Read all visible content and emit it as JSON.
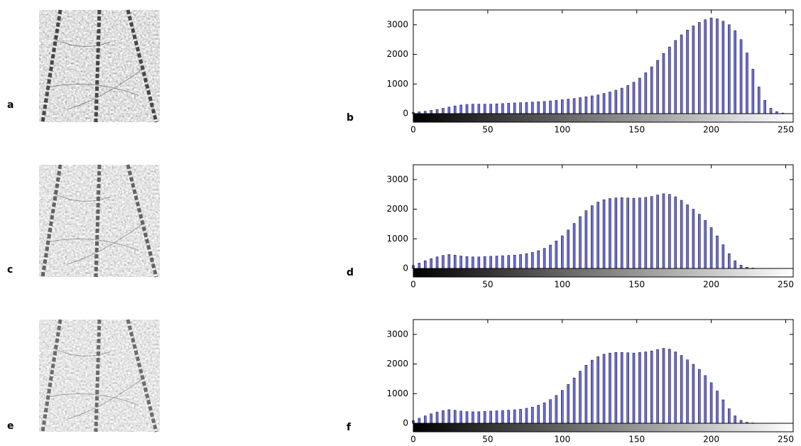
{
  "image_labels": [
    "a",
    "c",
    "e"
  ],
  "chart_data": [
    {
      "type": "bar",
      "label": "b",
      "color": "#6f6fe0",
      "xlim": [
        0,
        255
      ],
      "ylim": [
        0,
        3500
      ],
      "xticks": [
        0,
        50,
        100,
        150,
        200,
        250
      ],
      "yticks": [
        0,
        1000,
        2000,
        3000
      ],
      "grid": false,
      "x": [
        0,
        4,
        8,
        12,
        16,
        20,
        24,
        28,
        32,
        36,
        40,
        44,
        48,
        52,
        56,
        60,
        64,
        68,
        72,
        76,
        80,
        84,
        88,
        92,
        96,
        100,
        104,
        108,
        112,
        116,
        120,
        124,
        128,
        132,
        136,
        140,
        144,
        148,
        152,
        156,
        160,
        164,
        168,
        172,
        176,
        180,
        184,
        188,
        192,
        196,
        200,
        204,
        208,
        212,
        216,
        220,
        224,
        228,
        232,
        236,
        240,
        244,
        248,
        252
      ],
      "values": [
        40,
        60,
        80,
        110,
        140,
        180,
        220,
        260,
        290,
        310,
        320,
        320,
        320,
        320,
        330,
        340,
        350,
        360,
        370,
        380,
        390,
        400,
        410,
        430,
        450,
        470,
        490,
        510,
        540,
        570,
        600,
        630,
        680,
        730,
        790,
        860,
        950,
        1060,
        1200,
        1380,
        1580,
        1800,
        2030,
        2250,
        2470,
        2660,
        2820,
        2960,
        3080,
        3170,
        3230,
        3200,
        3120,
        3000,
        2800,
        2500,
        2050,
        1500,
        900,
        450,
        180,
        70,
        20,
        5
      ]
    },
    {
      "type": "bar",
      "label": "d",
      "color": "#6f6fe0",
      "xlim": [
        0,
        255
      ],
      "ylim": [
        0,
        3500
      ],
      "xticks": [
        0,
        50,
        100,
        150,
        200,
        250
      ],
      "yticks": [
        0,
        1000,
        2000,
        3000
      ],
      "grid": false,
      "x": [
        0,
        4,
        8,
        12,
        16,
        20,
        24,
        28,
        32,
        36,
        40,
        44,
        48,
        52,
        56,
        60,
        64,
        68,
        72,
        76,
        80,
        84,
        88,
        92,
        96,
        100,
        104,
        108,
        112,
        116,
        120,
        124,
        128,
        132,
        136,
        140,
        144,
        148,
        152,
        156,
        160,
        164,
        168,
        172,
        176,
        180,
        184,
        188,
        192,
        196,
        200,
        204,
        208,
        212,
        216,
        220,
        224,
        228,
        232,
        236,
        240,
        244,
        248,
        252
      ],
      "values": [
        100,
        180,
        260,
        330,
        390,
        440,
        470,
        450,
        420,
        400,
        390,
        390,
        400,
        410,
        420,
        430,
        440,
        450,
        470,
        500,
        540,
        600,
        680,
        790,
        930,
        1100,
        1300,
        1520,
        1750,
        1950,
        2120,
        2240,
        2320,
        2360,
        2380,
        2390,
        2380,
        2370,
        2380,
        2400,
        2430,
        2480,
        2520,
        2500,
        2420,
        2300,
        2150,
        2000,
        1830,
        1620,
        1380,
        1100,
        800,
        500,
        260,
        110,
        40,
        15,
        5,
        0,
        0,
        0,
        0,
        0
      ]
    },
    {
      "type": "bar",
      "label": "f",
      "color": "#6f6fe0",
      "xlim": [
        0,
        255
      ],
      "ylim": [
        0,
        3500
      ],
      "xticks": [
        0,
        50,
        100,
        150,
        200,
        250
      ],
      "yticks": [
        0,
        1000,
        2000,
        3000
      ],
      "grid": false,
      "x": [
        0,
        4,
        8,
        12,
        16,
        20,
        24,
        28,
        32,
        36,
        40,
        44,
        48,
        52,
        56,
        60,
        64,
        68,
        72,
        76,
        80,
        84,
        88,
        92,
        96,
        100,
        104,
        108,
        112,
        116,
        120,
        124,
        128,
        132,
        136,
        140,
        144,
        148,
        152,
        156,
        160,
        164,
        168,
        172,
        176,
        180,
        184,
        188,
        192,
        196,
        200,
        204,
        208,
        212,
        216,
        220,
        224,
        228,
        232,
        236,
        240,
        244,
        248,
        252
      ],
      "values": [
        90,
        170,
        250,
        320,
        380,
        430,
        460,
        440,
        410,
        395,
        385,
        390,
        400,
        410,
        420,
        430,
        440,
        455,
        475,
        505,
        545,
        610,
        690,
        800,
        940,
        1110,
        1310,
        1530,
        1760,
        1960,
        2130,
        2250,
        2330,
        2370,
        2390,
        2390,
        2380,
        2370,
        2390,
        2410,
        2440,
        2490,
        2530,
        2500,
        2410,
        2290,
        2140,
        1990,
        1820,
        1610,
        1370,
        1090,
        790,
        490,
        250,
        100,
        35,
        12,
        4,
        0,
        0,
        0,
        0,
        0
      ]
    }
  ]
}
